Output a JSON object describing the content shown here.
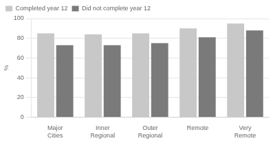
{
  "chart_data": {
    "type": "bar",
    "categories": [
      "Major\nCities",
      "Inner\nRegional",
      "Outer\nRegional",
      "Remote",
      "Very\nRemote"
    ],
    "series": [
      {
        "name": "Completed year 12",
        "color": "#c8c8c8",
        "values": [
          85,
          84,
          85,
          90,
          95
        ]
      },
      {
        "name": "Did not complete year 12",
        "color": "#7a7a7a",
        "values": [
          73,
          73,
          75,
          81,
          88
        ]
      }
    ],
    "ylabel": "%",
    "ylim": [
      0,
      100
    ],
    "yticks": [
      0,
      20,
      40,
      60,
      80,
      100
    ],
    "grid": true,
    "legend": "upper left"
  }
}
